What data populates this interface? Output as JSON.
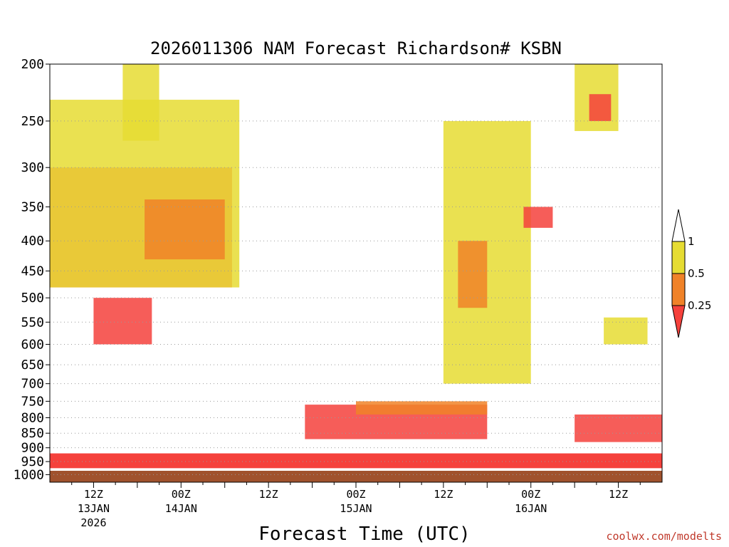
{
  "chart_data": {
    "type": "heatmap",
    "title": "2026011306 NAM Forecast Richardson# KSBN",
    "xlabel": "Forecast Time (UTC)",
    "ylabel": "",
    "credit": "coolwx.com/modelts",
    "x_range_hours": [
      0,
      84
    ],
    "y_ticks": [
      200,
      250,
      300,
      350,
      400,
      450,
      500,
      550,
      600,
      650,
      700,
      750,
      800,
      850,
      900,
      950,
      1000
    ],
    "y_tick_labels": [
      "200",
      "250",
      "300",
      "350",
      "400",
      "450",
      "500",
      "550",
      "600",
      "650",
      "700",
      "750",
      "800",
      "850",
      "900",
      "950",
      "1000"
    ],
    "ylim_hpa": [
      200,
      1030
    ],
    "x_ticks": [
      {
        "hour": 6,
        "label": "12Z",
        "date": "13JAN",
        "year": "2026"
      },
      {
        "hour": 18,
        "label": "00Z",
        "date": "14JAN",
        "year": ""
      },
      {
        "hour": 30,
        "label": "12Z",
        "date": "",
        "year": ""
      },
      {
        "hour": 42,
        "label": "00Z",
        "date": "15JAN",
        "year": ""
      },
      {
        "hour": 54,
        "label": "12Z",
        "date": "",
        "year": ""
      },
      {
        "hour": 66,
        "label": "00Z",
        "date": "16JAN",
        "year": ""
      },
      {
        "hour": 78,
        "label": "12Z",
        "date": "",
        "year": ""
      }
    ],
    "legend": {
      "bins": [
        {
          "label": "1",
          "color": "#ffffff"
        },
        {
          "label": "0.5",
          "color": "#e6dc32"
        },
        {
          "label": "0.25",
          "color": "#f08228"
        },
        {
          "label": "",
          "color": "#f5413c"
        }
      ]
    },
    "colors": {
      "lt_025": "#f5413c",
      "025_05": "#f08228",
      "05_1": "#e6dc32",
      "ground": "#a0522d"
    },
    "ground_level_hpa": 985,
    "near_surface_band": {
      "pressure_top_hpa": 920,
      "pressure_bottom_hpa": 975,
      "category": "lt_025"
    },
    "regions": [
      {
        "name": "upper-left-plume",
        "t": [
          0,
          25
        ],
        "p": [
          300,
          480
        ],
        "category": "lt_025"
      },
      {
        "name": "upper-left-plume-edge",
        "t": [
          0,
          26
        ],
        "p": [
          230,
          480
        ],
        "category": "05_1"
      },
      {
        "name": "upper-left-orange",
        "t": [
          13,
          24
        ],
        "p": [
          340,
          430
        ],
        "category": "025_05"
      },
      {
        "name": "upper-left-yellow-top",
        "t": [
          10,
          15
        ],
        "p": [
          200,
          270
        ],
        "category": "05_1"
      },
      {
        "name": "mid-left-streak",
        "t": [
          6,
          14
        ],
        "p": [
          500,
          600
        ],
        "category": "lt_025"
      },
      {
        "name": "low-level-layer-day2",
        "t": [
          35,
          60
        ],
        "p": [
          760,
          870
        ],
        "category": "lt_025"
      },
      {
        "name": "low-level-top-day2",
        "t": [
          42,
          60
        ],
        "p": [
          750,
          790
        ],
        "category": "025_05"
      },
      {
        "name": "upper-right-column",
        "t": [
          54,
          66
        ],
        "p": [
          250,
          700
        ],
        "category": "05_1"
      },
      {
        "name": "upper-right-column-core",
        "t": [
          56,
          60
        ],
        "p": [
          400,
          520
        ],
        "category": "025_05"
      },
      {
        "name": "right-mid-red",
        "t": [
          65,
          69
        ],
        "p": [
          350,
          380
        ],
        "category": "lt_025"
      },
      {
        "name": "top-right-yellow",
        "t": [
          72,
          78
        ],
        "p": [
          200,
          260
        ],
        "category": "05_1"
      },
      {
        "name": "top-right-red",
        "t": [
          74,
          77
        ],
        "p": [
          225,
          250
        ],
        "category": "lt_025"
      },
      {
        "name": "late-low-layer",
        "t": [
          72,
          84
        ],
        "p": [
          790,
          880
        ],
        "category": "lt_025"
      },
      {
        "name": "late-mid-yellow",
        "t": [
          76,
          82
        ],
        "p": [
          540,
          600
        ],
        "category": "05_1"
      }
    ]
  }
}
